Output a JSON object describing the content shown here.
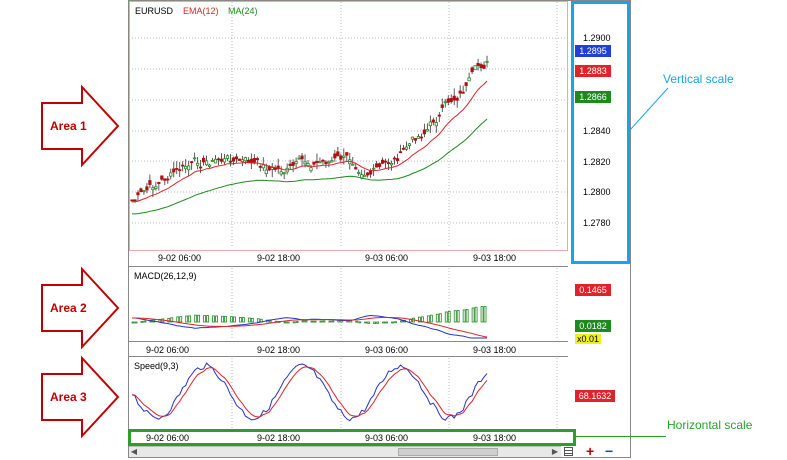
{
  "pane1": {
    "symbol": "EURUSD",
    "ema_label": "EMA(12)",
    "ma_label": "MA(24)",
    "price_ticks": [
      "1.2900",
      "1.2840",
      "1.2820",
      "1.2800",
      "1.2780"
    ],
    "price_tags": [
      {
        "text": "1.2895",
        "color": "#1f3fd6"
      },
      {
        "text": "1.2883",
        "color": "#e0222a"
      },
      {
        "text": "1.2866",
        "color": "#1e8a1e"
      }
    ]
  },
  "pane2": {
    "label": "MACD(26,12,9)",
    "tags": [
      {
        "text": "0.1465",
        "color": "#e0222a"
      },
      {
        "text": "0.0182",
        "color": "#1e8a1e"
      }
    ],
    "multiplier": "x0.01"
  },
  "pane3": {
    "label": "Speed(9,3)",
    "tag": {
      "text": "68.1632",
      "color": "#e0222a"
    }
  },
  "time_axis": [
    "9-02 06:00",
    "9-02 18:00",
    "9-03 06:00",
    "9-03 18:00"
  ],
  "annotations": {
    "area1": "Area 1",
    "area2": "Area 2",
    "area3": "Area 3",
    "vertical_scale": "Vertical scale",
    "horizontal_scale": "Horizontal scale"
  },
  "toolbar": {
    "plus": "+",
    "minus": "−"
  },
  "colors": {
    "annotation_red": "#c00000",
    "vertical_scale_blue": "#1aa3e8",
    "horizontal_scale_green": "#2aa02a",
    "macd_line": "#2233cc",
    "signal_line": "#e0222a",
    "histogram": "#1e8a1e"
  }
}
